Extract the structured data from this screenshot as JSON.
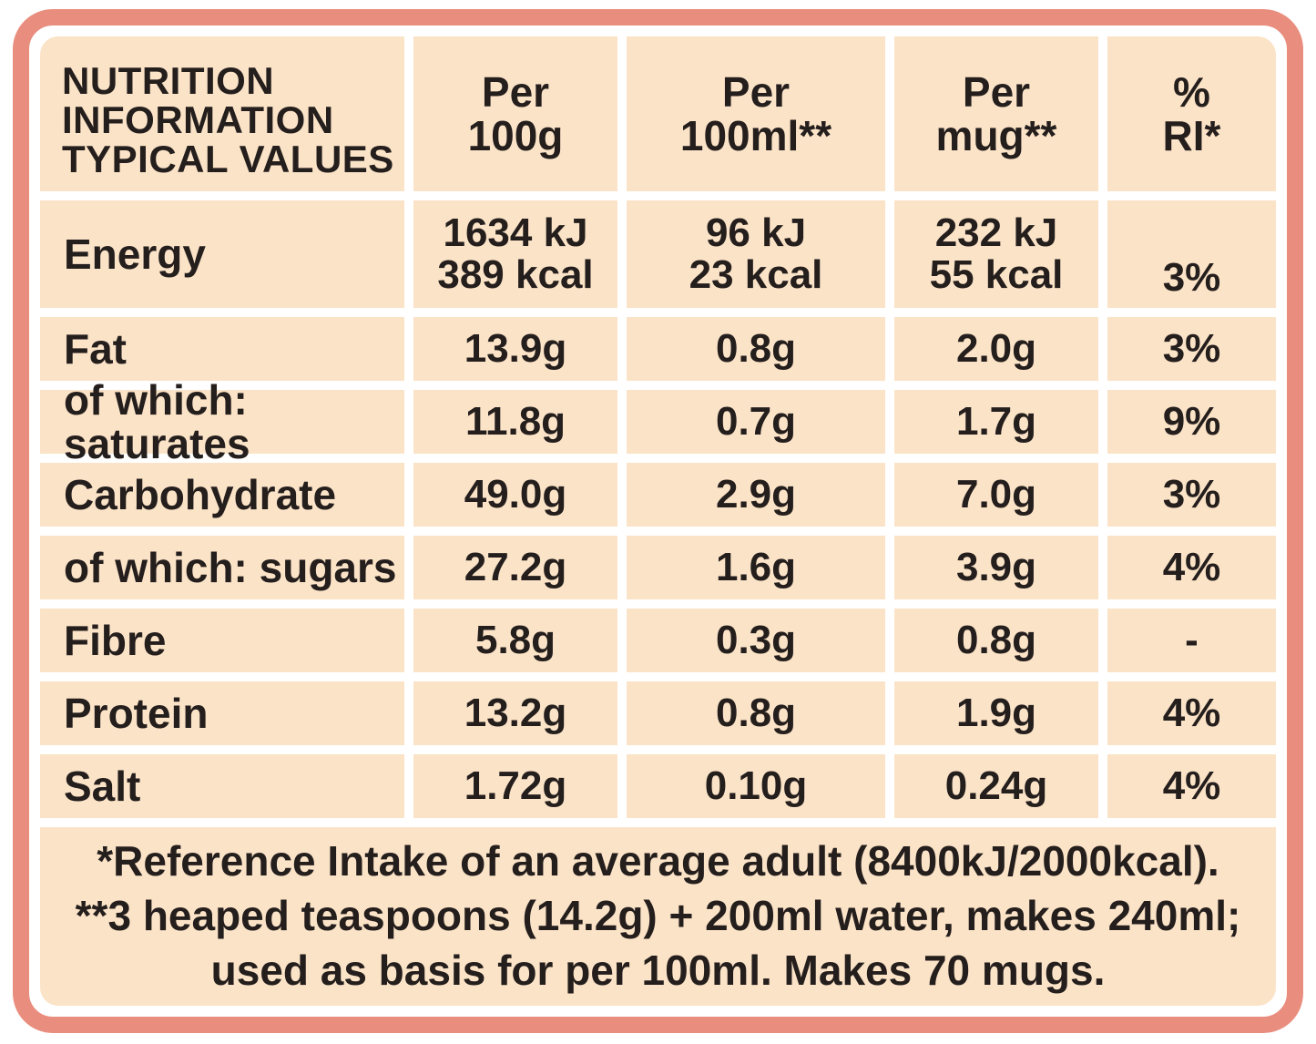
{
  "table": {
    "header": {
      "title": "NUTRITION\nINFORMATION\nTYPICAL VALUES",
      "columns": [
        "Per\n100g",
        "Per\n100ml**",
        "Per\nmug**",
        "%\nRI*"
      ]
    },
    "rows": [
      {
        "label": "Energy",
        "values": [
          "1634 kJ\n389 kcal",
          "96 kJ\n23 kcal",
          "232 kJ\n55 kcal",
          "3%"
        ]
      },
      {
        "label": "Fat",
        "values": [
          "13.9g",
          "0.8g",
          "2.0g",
          "3%"
        ]
      },
      {
        "label": "of which: saturates",
        "values": [
          "11.8g",
          "0.7g",
          "1.7g",
          "9%"
        ]
      },
      {
        "label": "Carbohydrate",
        "values": [
          "49.0g",
          "2.9g",
          "7.0g",
          "3%"
        ]
      },
      {
        "label": "of which: sugars",
        "values": [
          "27.2g",
          "1.6g",
          "3.9g",
          "4%"
        ]
      },
      {
        "label": "Fibre",
        "values": [
          "5.8g",
          "0.3g",
          "0.8g",
          "-"
        ]
      },
      {
        "label": "Protein",
        "values": [
          "13.2g",
          "0.8g",
          "1.9g",
          "4%"
        ]
      },
      {
        "label": "Salt",
        "values": [
          "1.72g",
          "0.10g",
          "0.24g",
          "4%"
        ]
      }
    ],
    "footnotes": [
      "*Reference Intake of an average adult (8400kJ/2000kcal).",
      "**3 heaped teaspoons (14.2g) + 200ml water, makes 240ml;",
      "used as basis for per 100ml. Makes 70 mugs."
    ],
    "colors": {
      "cell_background": "#FBE3C7",
      "border": "#E98E7E",
      "text": "#241E1D"
    }
  }
}
